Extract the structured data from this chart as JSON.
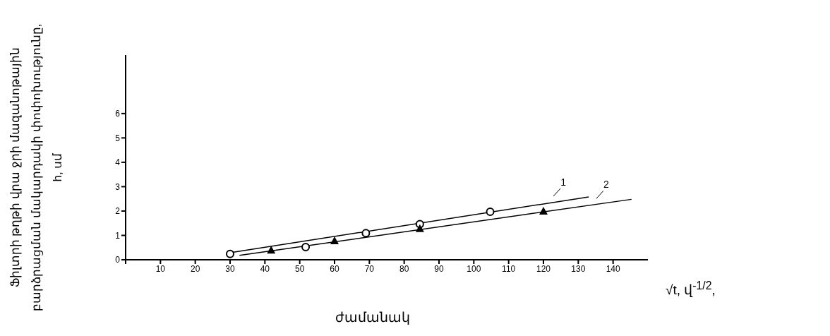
{
  "chart_data": {
    "type": "scatter",
    "xlabel": "ժամանակ",
    "ylabel": "Ֆիլտրի թղթի վրա ջրի մազանոթային բարձրացման մակարդակի փոփոխությունը, h, սմ",
    "annotations": [
      "√t, վ$^{-1/2}$,"
    ],
    "series": [
      {
        "marker": "circle",
        "color": "#000000",
        "x": [
          30,
          51.7,
          69,
          84.5,
          104.7
        ],
        "values": [
          0.24,
          0.52,
          1.09,
          1.46,
          1.97
        ]
      },
      {
        "marker": "triangle",
        "color": "#000000",
        "x": [
          41.8,
          60,
          84.5,
          120
        ],
        "values": [
          0.4,
          0.78,
          1.28,
          2.0
        ]
      },
      {
        "type": "line",
        "name": "1",
        "color": "#000000",
        "x": [
          30,
          133
        ],
        "values": [
          0.29,
          2.58
        ]
      },
      {
        "type": "line",
        "name": "2",
        "color": "#000000",
        "x": [
          32.7,
          145.3
        ],
        "values": [
          0.18,
          2.48
        ]
      }
    ],
    "xlim": [
      0,
      150
    ],
    "xticks": [
      {
        "value": 0,
        "label": null
      },
      10,
      20,
      30,
      40,
      50,
      60,
      70,
      80,
      90,
      100,
      110,
      120,
      130,
      140
    ],
    "ylim": [
      0,
      8.4
    ],
    "yticks": [
      0,
      1,
      2,
      3,
      4,
      5,
      6
    ],
    "grid": false,
    "legend": false
  }
}
